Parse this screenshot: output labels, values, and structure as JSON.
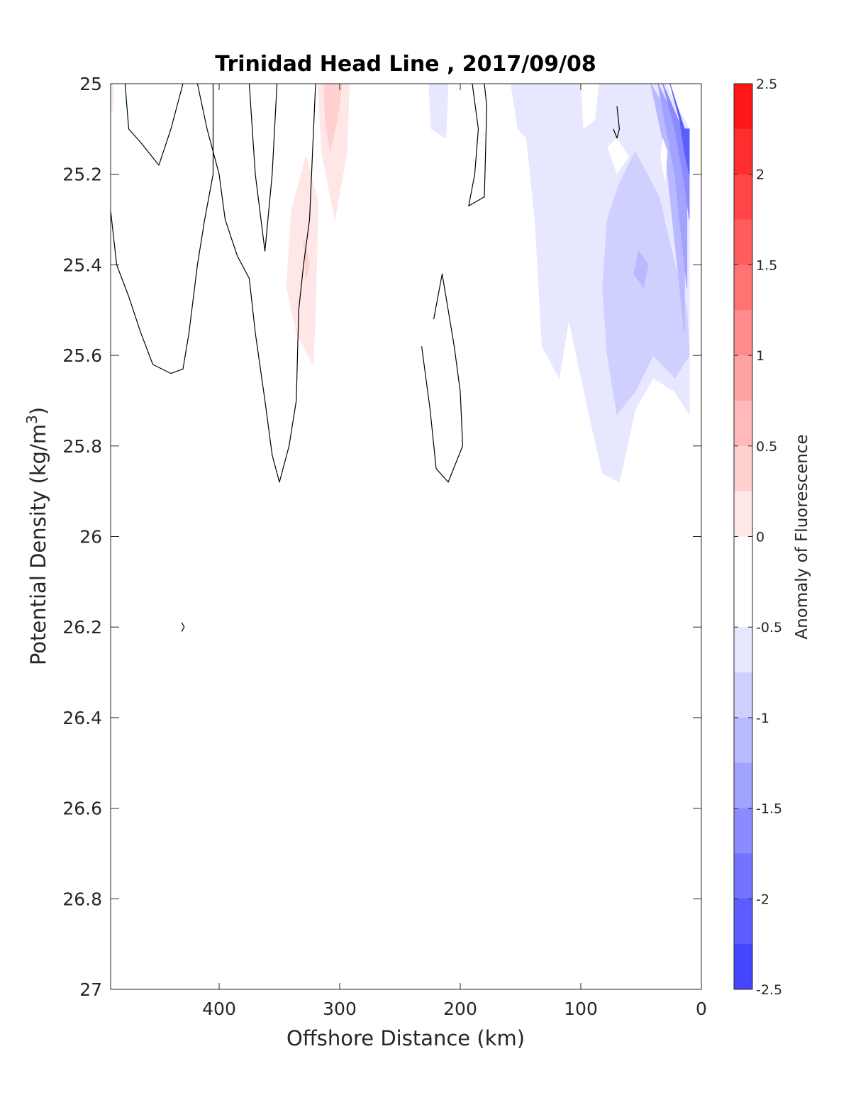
{
  "chart_data": {
    "type": "filled-contour",
    "title": "Trinidad Head Line , 2017/09/08",
    "xlabel": "Offshore Distance (km)",
    "ylabel_main": "Potential Density (kg/m",
    "ylabel_sup": "3",
    "ylabel_close": ")",
    "xlim": [
      490,
      0
    ],
    "ylim": [
      25,
      27
    ],
    "x_reversed": true,
    "y_reversed": true,
    "x_ticks": [
      "400",
      "300",
      "200",
      "100",
      "0"
    ],
    "x_tick_values": [
      400,
      300,
      200,
      100,
      0
    ],
    "y_ticks": [
      "25",
      "25.2",
      "25.4",
      "25.6",
      "25.8",
      "26",
      "26.2",
      "26.4",
      "26.6",
      "26.8",
      "27"
    ],
    "y_tick_values": [
      25,
      25.2,
      25.4,
      25.6,
      25.8,
      26,
      26.2,
      26.4,
      26.6,
      26.8,
      27
    ],
    "colorbar": {
      "label": "Anomaly of Fluorescence",
      "range": [
        -2.5,
        2.5
      ],
      "tick_labels": [
        "2.5",
        "2",
        "1.5",
        "1",
        "0.5",
        "0",
        "-0.5",
        "-1",
        "-1.5",
        "-2",
        "-2.5"
      ],
      "tick_values": [
        2.5,
        2,
        1.5,
        1,
        0.5,
        0,
        -0.5,
        -1,
        -1.5,
        -2,
        -2.5
      ],
      "levels": [
        {
          "from": 2.25,
          "to": 2.5,
          "color": "#ff1717"
        },
        {
          "from": 2.0,
          "to": 2.25,
          "color": "#ff2e2e"
        },
        {
          "from": 1.75,
          "to": 2.0,
          "color": "#ff4545"
        },
        {
          "from": 1.5,
          "to": 1.75,
          "color": "#ff5c5c"
        },
        {
          "from": 1.25,
          "to": 1.5,
          "color": "#ff7373"
        },
        {
          "from": 1.0,
          "to": 1.25,
          "color": "#ff8b8b"
        },
        {
          "from": 0.75,
          "to": 1.0,
          "color": "#ffa2a2"
        },
        {
          "from": 0.5,
          "to": 0.75,
          "color": "#ffb9b9"
        },
        {
          "from": 0.25,
          "to": 0.5,
          "color": "#ffd0d0"
        },
        {
          "from": 0.0,
          "to": 0.25,
          "color": "#ffe7e7"
        },
        {
          "from": -0.25,
          "to": 0.0,
          "color": "#ffffff"
        },
        {
          "from": -0.5,
          "to": -0.25,
          "color": "#ffffff"
        },
        {
          "from": -0.75,
          "to": -0.5,
          "color": "#e7e7ff"
        },
        {
          "from": -1.0,
          "to": -0.75,
          "color": "#d0d0ff"
        },
        {
          "from": -1.25,
          "to": -1.0,
          "color": "#b9b9ff"
        },
        {
          "from": -1.5,
          "to": -1.25,
          "color": "#a2a2ff"
        },
        {
          "from": -1.75,
          "to": -1.5,
          "color": "#8b8bff"
        },
        {
          "from": -2.0,
          "to": -1.75,
          "color": "#7373ff"
        },
        {
          "from": -2.25,
          "to": -2.0,
          "color": "#5c5cff"
        },
        {
          "from": -2.5,
          "to": -2.25,
          "color": "#4545ff"
        }
      ]
    },
    "regions": [
      {
        "name": "red-patch-left-edge",
        "color": "#ffe7e7",
        "points": [
          [
            490,
            25
          ],
          [
            488,
            25
          ],
          [
            488,
            25.06
          ],
          [
            490,
            25.06
          ]
        ]
      },
      {
        "name": "red-patch-upper",
        "color": "#ffe7e7",
        "points": [
          [
            318,
            25
          ],
          [
            292,
            25
          ],
          [
            294,
            25.15
          ],
          [
            304,
            25.3
          ],
          [
            315,
            25.15
          ]
        ]
      },
      {
        "name": "red-patch-upper-core",
        "color": "#ffd0d0",
        "points": [
          [
            313,
            25
          ],
          [
            298,
            25
          ],
          [
            302,
            25.08
          ],
          [
            308,
            25.15
          ],
          [
            312,
            25.08
          ]
        ]
      },
      {
        "name": "red-patch-lower",
        "color": "#ffe7e7",
        "points": [
          [
            340,
            25.28
          ],
          [
            328,
            25.16
          ],
          [
            318,
            25.26
          ],
          [
            320,
            25.5
          ],
          [
            322,
            25.62
          ],
          [
            336,
            25.55
          ],
          [
            344,
            25.45
          ]
        ]
      },
      {
        "name": "red-patch-lower-core",
        "color": "#ffd0d0",
        "points": [
          [
            330,
            25.34
          ],
          [
            325,
            25.4
          ],
          [
            328,
            25.43
          ]
        ]
      },
      {
        "name": "blue-patch-200",
        "color": "#e7e7ff",
        "points": [
          [
            226,
            25
          ],
          [
            210,
            25
          ],
          [
            212,
            25.12
          ],
          [
            224,
            25.1
          ]
        ]
      },
      {
        "name": "blue-region-outer",
        "color": "#e7e7ff",
        "points": [
          [
            158,
            25
          ],
          [
            30,
            25
          ],
          [
            10,
            25.1
          ],
          [
            10,
            25.73
          ],
          [
            22,
            25.68
          ],
          [
            40,
            25.65
          ],
          [
            55,
            25.72
          ],
          [
            68,
            25.88
          ],
          [
            82,
            25.86
          ],
          [
            94,
            25.72
          ],
          [
            110,
            25.52
          ],
          [
            118,
            25.65
          ],
          [
            132,
            25.58
          ],
          [
            138,
            25.3
          ],
          [
            145,
            25.12
          ],
          [
            152,
            25.1
          ]
        ]
      },
      {
        "name": "blue-region-mid",
        "color": "#d0d0ff",
        "points": [
          [
            55,
            25.15
          ],
          [
            35,
            25.25
          ],
          [
            22,
            25.4
          ],
          [
            12,
            25.5
          ],
          [
            10,
            25.6
          ],
          [
            22,
            25.65
          ],
          [
            40,
            25.6
          ],
          [
            55,
            25.68
          ],
          [
            70,
            25.73
          ],
          [
            78,
            25.6
          ],
          [
            82,
            25.45
          ],
          [
            78,
            25.3
          ],
          [
            68,
            25.22
          ]
        ]
      },
      {
        "name": "blue-region-inner",
        "color": "#b9b9ff",
        "points": [
          [
            52,
            25.37
          ],
          [
            44,
            25.4
          ],
          [
            48,
            25.45
          ],
          [
            56,
            25.42
          ]
        ]
      },
      {
        "name": "blue-coastal-1",
        "color": "#b9b9ff",
        "points": [
          [
            42,
            25
          ],
          [
            20,
            25.1
          ],
          [
            14,
            25.1
          ],
          [
            14,
            25.55
          ],
          [
            18,
            25.45
          ],
          [
            24,
            25.3
          ],
          [
            30,
            25.15
          ]
        ]
      },
      {
        "name": "blue-coastal-2",
        "color": "#a2a2ff",
        "points": [
          [
            36,
            25
          ],
          [
            18,
            25.1
          ],
          [
            12,
            25.1
          ],
          [
            12,
            25.45
          ],
          [
            16,
            25.35
          ],
          [
            22,
            25.2
          ]
        ]
      },
      {
        "name": "blue-coastal-3",
        "color": "#8b8bff",
        "points": [
          [
            32,
            25
          ],
          [
            16,
            25.1
          ],
          [
            10,
            25.1
          ],
          [
            10,
            25.3
          ],
          [
            14,
            25.22
          ],
          [
            22,
            25.1
          ]
        ]
      },
      {
        "name": "blue-coastal-4",
        "color": "#5c5cff",
        "points": [
          [
            26,
            25
          ],
          [
            14,
            25.1
          ],
          [
            10,
            25.1
          ],
          [
            10,
            25.2
          ],
          [
            14,
            25.15
          ],
          [
            18,
            25.08
          ]
        ]
      }
    ],
    "white_holes": [
      {
        "name": "white-hole-1",
        "points": [
          [
            70,
            25.12
          ],
          [
            60,
            25.16
          ],
          [
            70,
            25.2
          ],
          [
            78,
            25.14
          ]
        ]
      },
      {
        "name": "white-hole-2",
        "points": [
          [
            32,
            25.12
          ],
          [
            28,
            25.15
          ],
          [
            30,
            25.22
          ],
          [
            34,
            25.16
          ]
        ]
      },
      {
        "name": "white-hole-3",
        "points": [
          [
            100,
            25.0
          ],
          [
            85,
            25.0
          ],
          [
            88,
            25.08
          ],
          [
            98,
            25.1
          ]
        ]
      }
    ],
    "contour_lines": [
      {
        "name": "zero-contour-1",
        "points": [
          [
            478,
            25
          ],
          [
            475,
            25.1
          ],
          [
            465,
            25.13
          ],
          [
            450,
            25.18
          ],
          [
            440,
            25.1
          ],
          [
            430,
            25
          ]
        ]
      },
      {
        "name": "zero-contour-2",
        "points": [
          [
            490,
            25.28
          ],
          [
            485,
            25.4
          ],
          [
            475,
            25.47
          ],
          [
            465,
            25.55
          ],
          [
            455,
            25.62
          ],
          [
            440,
            25.64
          ],
          [
            430,
            25.63
          ],
          [
            425,
            25.55
          ],
          [
            418,
            25.4
          ],
          [
            412,
            25.3
          ],
          [
            405,
            25.2
          ],
          [
            405,
            25
          ]
        ]
      },
      {
        "name": "zero-contour-3",
        "points": [
          [
            418,
            25
          ],
          [
            410,
            25.1
          ],
          [
            400,
            25.2
          ],
          [
            395,
            25.3
          ],
          [
            385,
            25.38
          ],
          [
            375,
            25.43
          ],
          [
            370,
            25.55
          ],
          [
            362,
            25.7
          ],
          [
            356,
            25.82
          ],
          [
            350,
            25.88
          ],
          [
            342,
            25.8
          ],
          [
            336,
            25.7
          ],
          [
            334,
            25.5
          ],
          [
            330,
            25.4
          ],
          [
            325,
            25.3
          ],
          [
            320,
            25.0
          ]
        ]
      },
      {
        "name": "zero-contour-4",
        "points": [
          [
            375,
            25
          ],
          [
            370,
            25.2
          ],
          [
            362,
            25.37
          ],
          [
            356,
            25.2
          ],
          [
            352,
            25
          ]
        ]
      },
      {
        "name": "zero-contour-5",
        "points": [
          [
            190,
            25
          ],
          [
            185,
            25.1
          ],
          [
            188,
            25.2
          ],
          [
            193,
            25.27
          ],
          [
            180,
            25.25
          ],
          [
            178,
            25.05
          ],
          [
            180,
            25
          ]
        ]
      },
      {
        "name": "zero-contour-6",
        "points": [
          [
            232,
            25.58
          ],
          [
            225,
            25.72
          ],
          [
            220,
            25.85
          ],
          [
            210,
            25.88
          ],
          [
            198,
            25.8
          ],
          [
            200,
            25.68
          ],
          [
            205,
            25.58
          ],
          [
            215,
            25.42
          ],
          [
            222,
            25.52
          ]
        ]
      },
      {
        "name": "zero-contour-7",
        "points": [
          [
            70,
            25.05
          ],
          [
            68,
            25.1
          ],
          [
            70,
            25.12
          ],
          [
            73,
            25.1
          ]
        ]
      },
      {
        "name": "zero-contour-8",
        "points": [
          [
            431,
            26.19
          ],
          [
            429,
            26.2
          ],
          [
            431,
            26.21
          ]
        ]
      }
    ]
  }
}
